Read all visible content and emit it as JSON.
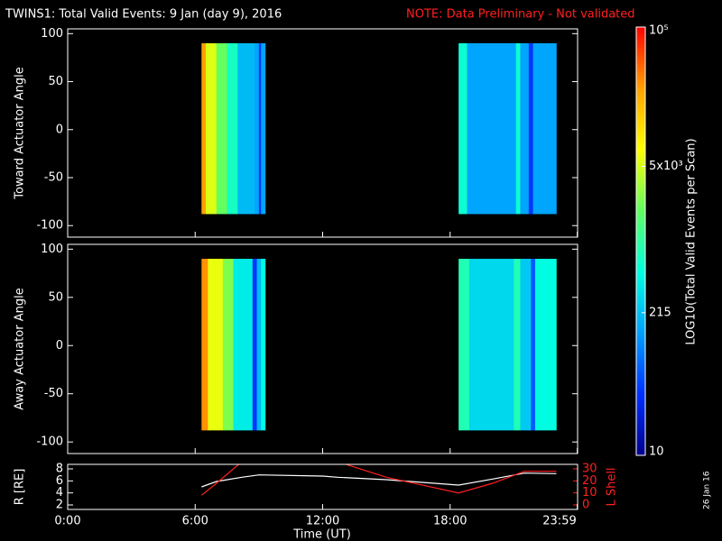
{
  "header": {
    "title": "TWINS1: Total Valid Events:  9 Jan (day   9), 2016",
    "note": "NOTE: Data Preliminary - Not validated",
    "xlabel": "Time (UT)",
    "stamp": "26 Jan 16"
  },
  "colorbar": {
    "label": "LOG10(Total Valid Events per Scan)",
    "lim": [
      10,
      100000
    ],
    "log": true,
    "ticks": [
      10,
      215,
      {
        "value": 5000,
        "label": "5x10³"
      },
      {
        "value": 100000,
        "label": "10⁵"
      }
    ],
    "colormap": [
      "#00008c",
      "#0030ff",
      "#00a0ff",
      "#00ffe0",
      "#60ff60",
      "#ffff00",
      "#ffa000",
      "#ff0000"
    ]
  },
  "chart_data": [
    {
      "type": "heatmap",
      "ylabel": "Toward Actuator Angle",
      "xlim": [
        0,
        24
      ],
      "ylim": [
        -112,
        105
      ],
      "yticks": [
        -100,
        -50,
        0,
        50,
        100
      ],
      "xticks": [
        0,
        6,
        12,
        18,
        23.983
      ],
      "angle_range": [
        -88,
        90
      ],
      "time_edges": [
        6.3,
        6.5,
        7.0,
        7.5,
        8.0,
        8.8,
        9.0,
        9.1,
        9.3,
        18.4,
        18.8,
        21.1,
        21.3,
        21.7,
        21.9,
        23.0
      ],
      "values": [
        26000,
        5400,
        2000,
        700,
        200,
        150,
        40,
        150,
        null,
        600,
        150,
        600,
        150,
        40,
        150
      ]
    },
    {
      "type": "heatmap",
      "ylabel": "Away Actuator Angle",
      "xlim": [
        0,
        24
      ],
      "ylim": [
        -112,
        105
      ],
      "yticks": [
        -100,
        -50,
        0,
        50,
        100
      ],
      "xticks": [
        0,
        6,
        12,
        18,
        23.983
      ],
      "angle_range": [
        -88,
        90
      ],
      "time_edges": [
        6.3,
        6.6,
        7.3,
        7.8,
        8.7,
        8.9,
        9.1,
        9.3,
        18.4,
        18.9,
        21.0,
        21.3,
        21.8,
        22.0,
        23.0
      ],
      "values": [
        30000,
        6000,
        2500,
        400,
        40,
        200,
        500,
        null,
        800,
        300,
        800,
        250,
        60,
        500
      ]
    },
    {
      "type": "line",
      "ylabel": "R [RE]",
      "y2label": "L Shell",
      "xlim": [
        0,
        24
      ],
      "ylim": [
        1.25,
        8.75
      ],
      "y2lim": [
        -3.75,
        33.75
      ],
      "yticks": [
        2,
        4,
        6,
        8
      ],
      "y2ticks": [
        0,
        10,
        20,
        30
      ],
      "xticks": [
        {
          "value": 0,
          "label": "0:00"
        },
        {
          "value": 6,
          "label": "6:00"
        },
        {
          "value": 12,
          "label": "12:00"
        },
        {
          "value": 18,
          "label": "18:00"
        },
        {
          "value": 23.983,
          "label": "23:59"
        }
      ],
      "x": [
        6.3,
        7,
        8.2,
        9,
        12,
        12.7,
        15,
        18.4,
        20,
        21.5,
        23
      ],
      "series": [
        {
          "color": "#ffffff",
          "values": [
            5,
            5.9,
            6.6,
            7,
            6.8,
            6.6,
            6.2,
            5.3,
            6.3,
            7.3,
            7.2
          ]
        },
        {
          "color": "#ff2020",
          "axis": "y2",
          "values": [
            8,
            18,
            36,
            null,
            null,
            36,
            23,
            10,
            18,
            28,
            28
          ]
        }
      ]
    }
  ]
}
